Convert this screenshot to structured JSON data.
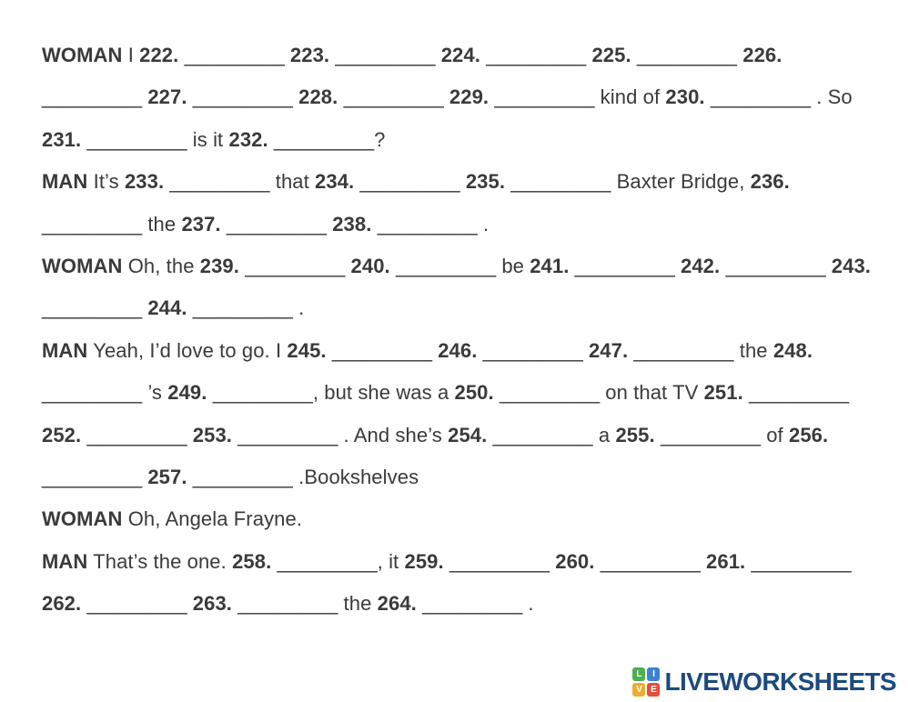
{
  "colors": {
    "text": "#3a3a3a",
    "logo_blue": "#1c4a7e",
    "page_background": "#ffffff"
  },
  "worksheet": {
    "blank_text": "_________",
    "lines": [
      {
        "segments": [
          {
            "t": "WOMAN",
            "b": true
          },
          {
            "t": " I "
          },
          {
            "t": "222. ",
            "b": true
          },
          {
            "blank": "222"
          },
          {
            "t": " "
          },
          {
            "t": "223. ",
            "b": true
          },
          {
            "blank": "223"
          },
          {
            "t": " "
          },
          {
            "t": "224. ",
            "b": true
          },
          {
            "blank": "224"
          },
          {
            "t": " "
          },
          {
            "t": "225. ",
            "b": true
          },
          {
            "blank": "225"
          },
          {
            "t": " "
          },
          {
            "t": "226.",
            "b": true
          }
        ]
      },
      {
        "segments": [
          {
            "blank": "226"
          },
          {
            "t": " "
          },
          {
            "t": "227. ",
            "b": true
          },
          {
            "blank": "227"
          },
          {
            "t": " "
          },
          {
            "t": "228. ",
            "b": true
          },
          {
            "blank": "228"
          },
          {
            "t": " "
          },
          {
            "t": "229. ",
            "b": true
          },
          {
            "blank": "229"
          },
          {
            "t": " kind of "
          },
          {
            "t": "230. ",
            "b": true
          },
          {
            "blank": "230"
          },
          {
            "t": " . So"
          }
        ]
      },
      {
        "segments": [
          {
            "t": "231. ",
            "b": true
          },
          {
            "blank": "231"
          },
          {
            "t": " is it "
          },
          {
            "t": "232. ",
            "b": true
          },
          {
            "blank": "232"
          },
          {
            "t": "?"
          }
        ]
      },
      {
        "segments": [
          {
            "t": "MAN",
            "b": true
          },
          {
            "t": " It’s "
          },
          {
            "t": "233. ",
            "b": true
          },
          {
            "blank": "233"
          },
          {
            "t": " that "
          },
          {
            "t": "234. ",
            "b": true
          },
          {
            "blank": "234"
          },
          {
            "t": " "
          },
          {
            "t": "235. ",
            "b": true
          },
          {
            "blank": "235"
          },
          {
            "t": " Baxter Bridge, "
          },
          {
            "t": "236.",
            "b": true
          }
        ]
      },
      {
        "segments": [
          {
            "blank": "236"
          },
          {
            "t": " the "
          },
          {
            "t": "237. ",
            "b": true
          },
          {
            "blank": "237"
          },
          {
            "t": " "
          },
          {
            "t": "238. ",
            "b": true
          },
          {
            "blank": "238"
          },
          {
            "t": " ."
          }
        ]
      },
      {
        "segments": [
          {
            "t": "WOMAN",
            "b": true
          },
          {
            "t": " Oh, the "
          },
          {
            "t": "239. ",
            "b": true
          },
          {
            "blank": "239"
          },
          {
            "t": " "
          },
          {
            "t": "240. ",
            "b": true
          },
          {
            "blank": "240"
          },
          {
            "t": " be "
          },
          {
            "t": "241. ",
            "b": true
          },
          {
            "blank": "241"
          },
          {
            "t": " "
          },
          {
            "t": "242. ",
            "b": true
          },
          {
            "blank": "242"
          },
          {
            "t": " "
          },
          {
            "t": "243.",
            "b": true
          }
        ]
      },
      {
        "segments": [
          {
            "blank": "243"
          },
          {
            "t": " "
          },
          {
            "t": "244. ",
            "b": true
          },
          {
            "blank": "244"
          },
          {
            "t": " ."
          }
        ]
      },
      {
        "segments": [
          {
            "t": "MAN",
            "b": true
          },
          {
            "t": " Yeah, I’d love to go. I "
          },
          {
            "t": "245. ",
            "b": true
          },
          {
            "blank": "245"
          },
          {
            "t": " "
          },
          {
            "t": "246. ",
            "b": true
          },
          {
            "blank": "246"
          },
          {
            "t": " "
          },
          {
            "t": "247. ",
            "b": true
          },
          {
            "blank": "247"
          },
          {
            "t": " the "
          },
          {
            "t": "248.",
            "b": true
          }
        ]
      },
      {
        "segments": [
          {
            "blank": "248"
          },
          {
            "t": " ’s "
          },
          {
            "t": "249. ",
            "b": true
          },
          {
            "blank": "249"
          },
          {
            "t": ", but she was a "
          },
          {
            "t": "250. ",
            "b": true
          },
          {
            "blank": "250"
          },
          {
            "t": " on that TV "
          },
          {
            "t": "251. ",
            "b": true
          },
          {
            "blank": "251"
          }
        ]
      },
      {
        "segments": [
          {
            "t": "252. ",
            "b": true
          },
          {
            "blank": "252"
          },
          {
            "t": " "
          },
          {
            "t": "253. ",
            "b": true
          },
          {
            "blank": "253"
          },
          {
            "t": " . And she’s "
          },
          {
            "t": "254. ",
            "b": true
          },
          {
            "blank": "254"
          },
          {
            "t": " a "
          },
          {
            "t": "255. ",
            "b": true
          },
          {
            "blank": "255"
          },
          {
            "t": " of "
          },
          {
            "t": "256.",
            "b": true
          }
        ]
      },
      {
        "segments": [
          {
            "blank": "256"
          },
          {
            "t": " "
          },
          {
            "t": "257. ",
            "b": true
          },
          {
            "blank": "257"
          },
          {
            "t": " .Bookshelves"
          }
        ]
      },
      {
        "segments": [
          {
            "t": "WOMAN",
            "b": true
          },
          {
            "t": " Oh, Angela Frayne."
          }
        ]
      },
      {
        "segments": [
          {
            "t": "MAN",
            "b": true
          },
          {
            "t": " That’s the one. "
          },
          {
            "t": "258. ",
            "b": true
          },
          {
            "blank": "258"
          },
          {
            "t": ", it "
          },
          {
            "t": "259. ",
            "b": true
          },
          {
            "blank": "259"
          },
          {
            "t": " "
          },
          {
            "t": "260. ",
            "b": true
          },
          {
            "blank": "260"
          },
          {
            "t": " "
          },
          {
            "t": "261. ",
            "b": true
          },
          {
            "blank": "261"
          }
        ]
      },
      {
        "segments": [
          {
            "t": "262. ",
            "b": true
          },
          {
            "blank": "262"
          },
          {
            "t": " "
          },
          {
            "t": "263. ",
            "b": true
          },
          {
            "blank": "263"
          },
          {
            "t": " the "
          },
          {
            "t": "264. ",
            "b": true
          },
          {
            "blank": "264"
          },
          {
            "t": " ."
          }
        ]
      }
    ]
  },
  "footer": {
    "logo_text": "LIVEWORKSHEETS",
    "icon_tiles": [
      {
        "letter": "L",
        "color": "#4caf50"
      },
      {
        "letter": "I",
        "color": "#3b82d0"
      },
      {
        "letter": "V",
        "color": "#f0ad2d"
      },
      {
        "letter": "E",
        "color": "#e74c3c"
      }
    ]
  }
}
